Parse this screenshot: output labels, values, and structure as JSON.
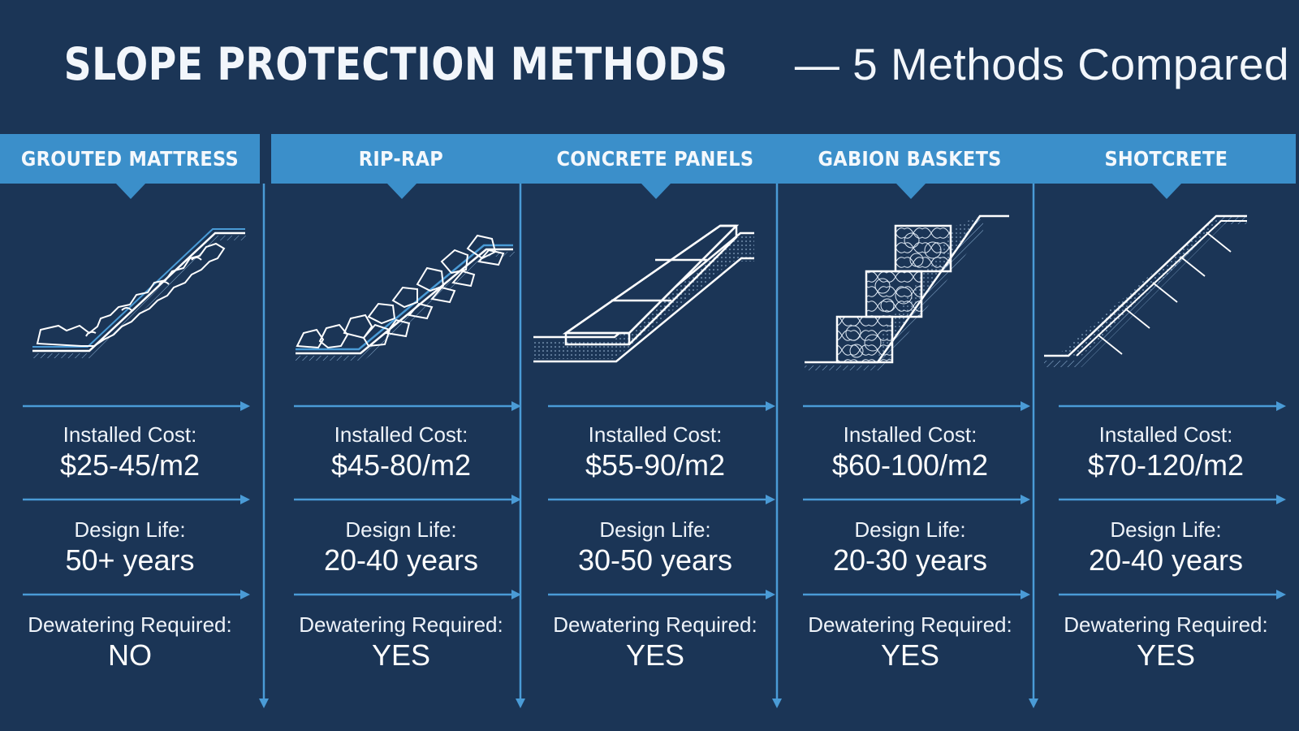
{
  "title": {
    "main": "SLOPE PROTECTION METHODS",
    "sub": " — 5 Methods Compared"
  },
  "labels": {
    "cost": "Installed Cost:",
    "life": "Design Life:",
    "dewatering": "Dewatering Required:"
  },
  "colors": {
    "background": "#1b3556",
    "header": "#3b8fca",
    "accent": "#4a9bd6",
    "line": "#ffffff"
  },
  "methods": [
    {
      "name": "GROUTED MATTRESS",
      "icon": "grouted-mattress-illustration",
      "cost": "$25-45/m2",
      "life": "50+ years",
      "dewatering": "NO"
    },
    {
      "name": "RIP-RAP",
      "icon": "rip-rap-illustration",
      "cost": "$45-80/m2",
      "life": "20-40 years",
      "dewatering": "YES"
    },
    {
      "name": "CONCRETE PANELS",
      "icon": "concrete-panels-illustration",
      "cost": "$55-90/m2",
      "life": "30-50 years",
      "dewatering": "YES"
    },
    {
      "name": "GABION BASKETS",
      "icon": "gabion-baskets-illustration",
      "cost": "$60-100/m2",
      "life": "20-30 years",
      "dewatering": "YES"
    },
    {
      "name": "SHOTCRETE",
      "icon": "shotcrete-illustration",
      "cost": "$70-120/m2",
      "life": "20-40 years",
      "dewatering": "YES"
    }
  ]
}
